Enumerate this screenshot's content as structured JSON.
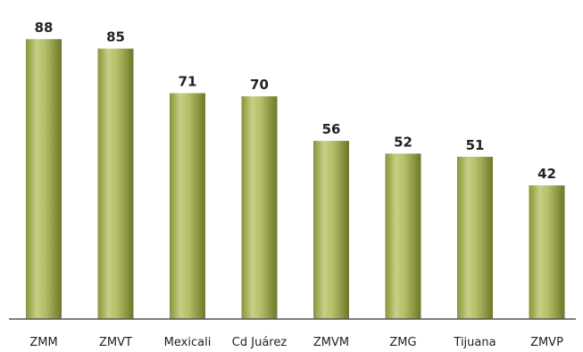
{
  "chart_data": {
    "type": "bar",
    "title": "",
    "xlabel": "",
    "ylabel": "",
    "categories": [
      "ZMM",
      "ZMVT",
      "Mexicali",
      "Cd Juárez",
      "ZMVM",
      "ZMG",
      "Tijuana",
      "ZMVP"
    ],
    "values": [
      88,
      85,
      71,
      70,
      56,
      52,
      51,
      42
    ],
    "ylim": [
      0,
      100
    ],
    "grid": false,
    "legend": "none",
    "data_labels": true,
    "colors": {
      "bar_light": "#c9d08a",
      "bar_mid": "#9aa44c",
      "bar_dark": "#6d7628",
      "axis": "#555555"
    }
  }
}
